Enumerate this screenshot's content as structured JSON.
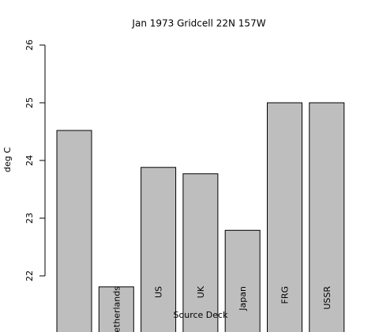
{
  "chart_data": {
    "type": "bar",
    "title": "Jan 1973 Gridcell 22N 157W",
    "x_label": "Source Deck",
    "y_label": "deg C",
    "categories": [
      null,
      "Netherlands",
      "US",
      "UK",
      "Japan",
      "FRG",
      "USSR"
    ],
    "values": [
      24.52,
      21.81,
      23.88,
      23.77,
      22.79,
      25,
      25
    ],
    "color": "#bebebe",
    "ylim": [
      21,
      26
    ],
    "yticks": [
      22,
      23,
      24,
      25,
      26
    ],
    "grid": false
  }
}
